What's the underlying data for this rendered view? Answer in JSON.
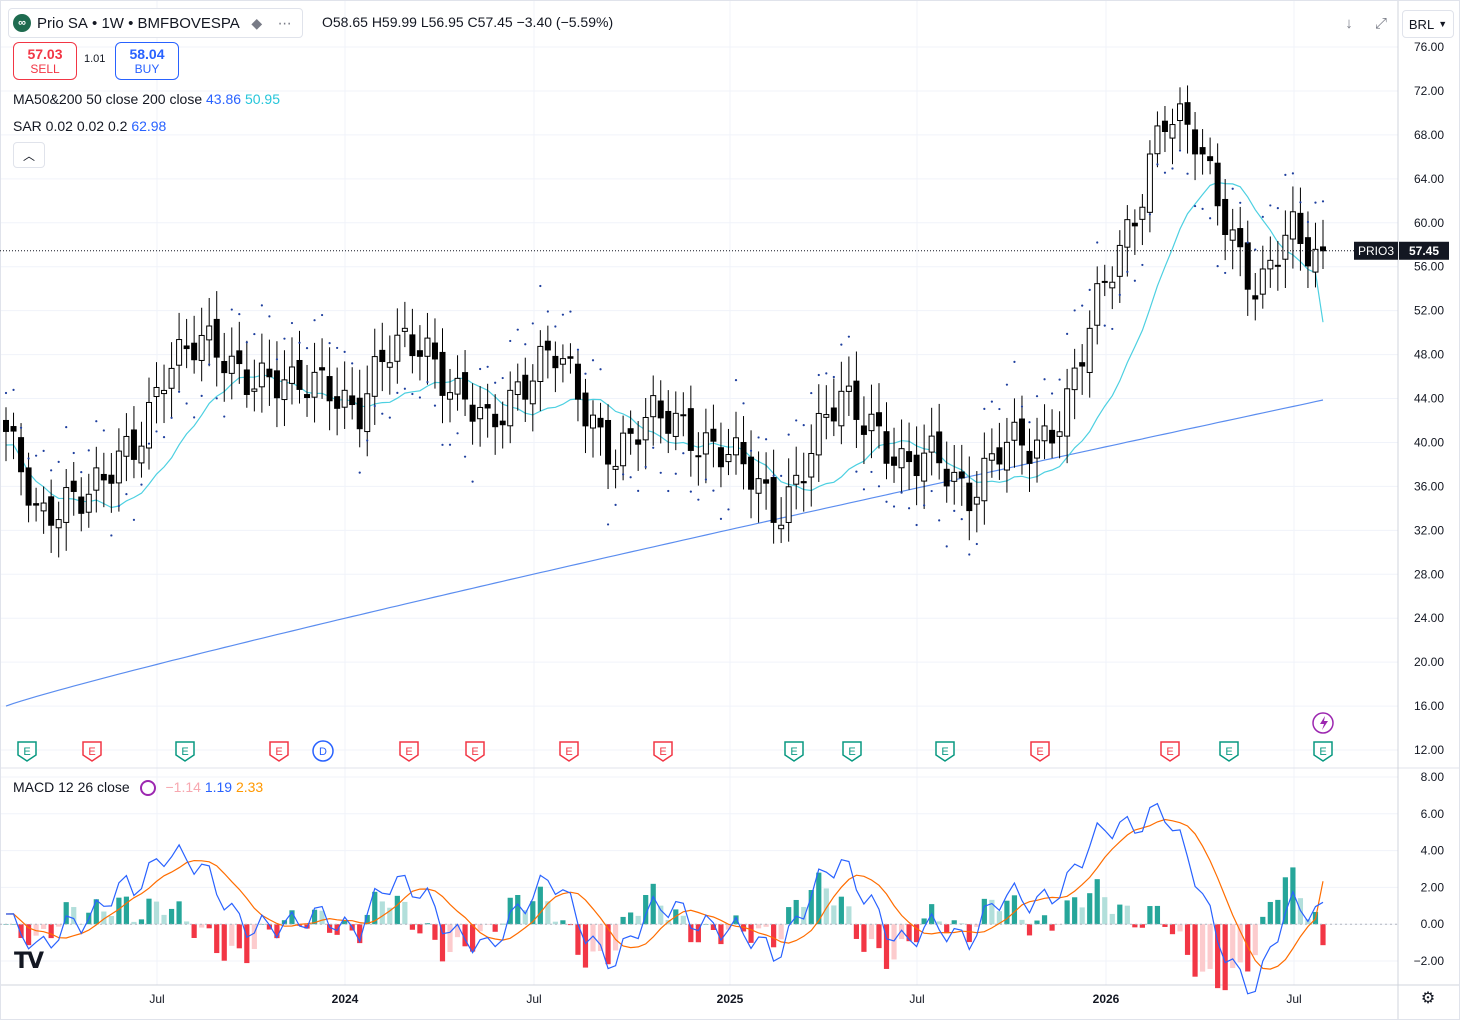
{
  "header": {
    "symbol_name": "Prio SA",
    "interval": "1W",
    "exchange": "BMFBOVESPA",
    "ohlc_text": "O58.65 H59.99 L56.95 C57.45 −3.40 (−5.59%)",
    "currency": "BRL"
  },
  "trade": {
    "sell_price": "57.03",
    "sell_label": "SELL",
    "spread": "1.01",
    "buy_price": "58.04",
    "buy_label": "BUY"
  },
  "indicators": {
    "ma_label": "MA50&200 50 close 200 close",
    "ma_value_1": "43.86",
    "ma_value_2": "50.95",
    "sar_label": "SAR 0.02 0.02 0.2",
    "sar_value": "62.98",
    "macd_label": "MACD 12 26 close",
    "macd_hist": "−1.14",
    "macd_value": "1.19",
    "macd_signal": "2.33"
  },
  "price_tag": {
    "symbol": "PRIO3",
    "price": "57.45"
  },
  "colors": {
    "up": "#ffffff",
    "down": "#000000",
    "ma50": "#4dd0e1",
    "ma200": "#5b8def",
    "sar": "#1e3f9e",
    "macd": "#2962ff",
    "signal": "#ff6d00",
    "hist_pos_strong": "#26a69a",
    "hist_pos_weak": "#b2dfdb",
    "hist_neg_strong": "#f23645",
    "hist_neg_weak": "#fccbcd",
    "earnings": "#f23645",
    "earnings_green": "#089981",
    "dividend": "#2962ff"
  },
  "chart_data": {
    "type": "candlestick",
    "price_axis": {
      "min": 12,
      "max": 76,
      "ticks": [
        "76.00",
        "72.00",
        "68.00",
        "64.00",
        "60.00",
        "56.00",
        "52.00",
        "48.00",
        "44.00",
        "40.00",
        "36.00",
        "32.00",
        "28.00",
        "24.00",
        "20.00",
        "16.00",
        "12.00"
      ]
    },
    "macd_axis": {
      "min": -2.8,
      "max": 8.0,
      "ticks": [
        "8.00",
        "6.00",
        "4.00",
        "2.00",
        "0.00",
        "−2.00"
      ]
    },
    "time_axis": [
      "Jul",
      "2024",
      "Jul",
      "2025",
      "Jul",
      "2026",
      "Jul"
    ],
    "key_closes": [
      [
        "2023-03",
        41.0
      ],
      [
        "2023-04",
        32.0
      ],
      [
        "2023-05",
        36.0
      ],
      [
        "2023-06",
        36.0
      ],
      [
        "2023-07",
        39.0
      ],
      [
        "2023-08",
        48.0
      ],
      [
        "2023-09",
        48.5
      ],
      [
        "2023-10",
        47.0
      ],
      [
        "2023-11",
        46.5
      ],
      [
        "2023-12",
        44.0
      ],
      [
        "2024-01",
        46.0
      ],
      [
        "2024-02",
        43.0
      ],
      [
        "2024-03",
        48.0
      ],
      [
        "2024-04",
        50.0
      ],
      [
        "2024-05",
        44.0
      ],
      [
        "2024-06",
        41.0
      ],
      [
        "2024-07",
        46.0
      ],
      [
        "2024-08",
        48.0
      ],
      [
        "2024-09",
        43.0
      ],
      [
        "2024-10",
        39.5
      ],
      [
        "2024-11",
        41.5
      ],
      [
        "2024-12",
        42.0
      ],
      [
        "2025-01",
        40.0
      ],
      [
        "2025-02",
        37.0
      ],
      [
        "2025-03",
        34.0
      ],
      [
        "2025-04",
        39.0
      ],
      [
        "2025-05",
        43.5
      ],
      [
        "2025-06",
        42.5
      ],
      [
        "2025-07",
        37.0
      ],
      [
        "2025-08",
        38.5
      ],
      [
        "2025-09",
        36.0
      ],
      [
        "2025-10",
        39.0
      ],
      [
        "2025-11",
        39.5
      ],
      [
        "2025-12",
        44.0
      ],
      [
        "2026-01",
        52.0
      ],
      [
        "2026-02",
        60.0
      ],
      [
        "2026-03",
        70.0
      ],
      [
        "2026-04",
        67.0
      ],
      [
        "2026-05",
        61.0
      ],
      [
        "2026-06",
        53.0
      ],
      [
        "2026-07",
        59.0
      ],
      [
        "2026-07b",
        57.45
      ]
    ],
    "series": [
      {
        "name": "MA 50",
        "last": 50.95
      },
      {
        "name": "MA 200",
        "last": 43.86
      },
      {
        "name": "SAR",
        "last": 62.98
      },
      {
        "name": "MACD",
        "last": 1.19
      },
      {
        "name": "Signal",
        "last": 2.33
      },
      {
        "name": "Histogram",
        "last": -1.14
      }
    ],
    "events": [
      {
        "type": "E",
        "color": "green"
      },
      {
        "type": "E",
        "color": "red"
      },
      {
        "type": "E",
        "color": "green"
      },
      {
        "type": "E",
        "color": "red"
      },
      {
        "type": "D",
        "color": "blue"
      },
      {
        "type": "E",
        "color": "red"
      },
      {
        "type": "E",
        "color": "red"
      },
      {
        "type": "E",
        "color": "red"
      },
      {
        "type": "E",
        "color": "red"
      },
      {
        "type": "E",
        "color": "green"
      },
      {
        "type": "E",
        "color": "green"
      },
      {
        "type": "E",
        "color": "green"
      },
      {
        "type": "E",
        "color": "red"
      },
      {
        "type": "E",
        "color": "red"
      },
      {
        "type": "E",
        "color": "green"
      },
      {
        "type": "E",
        "color": "green"
      }
    ]
  }
}
